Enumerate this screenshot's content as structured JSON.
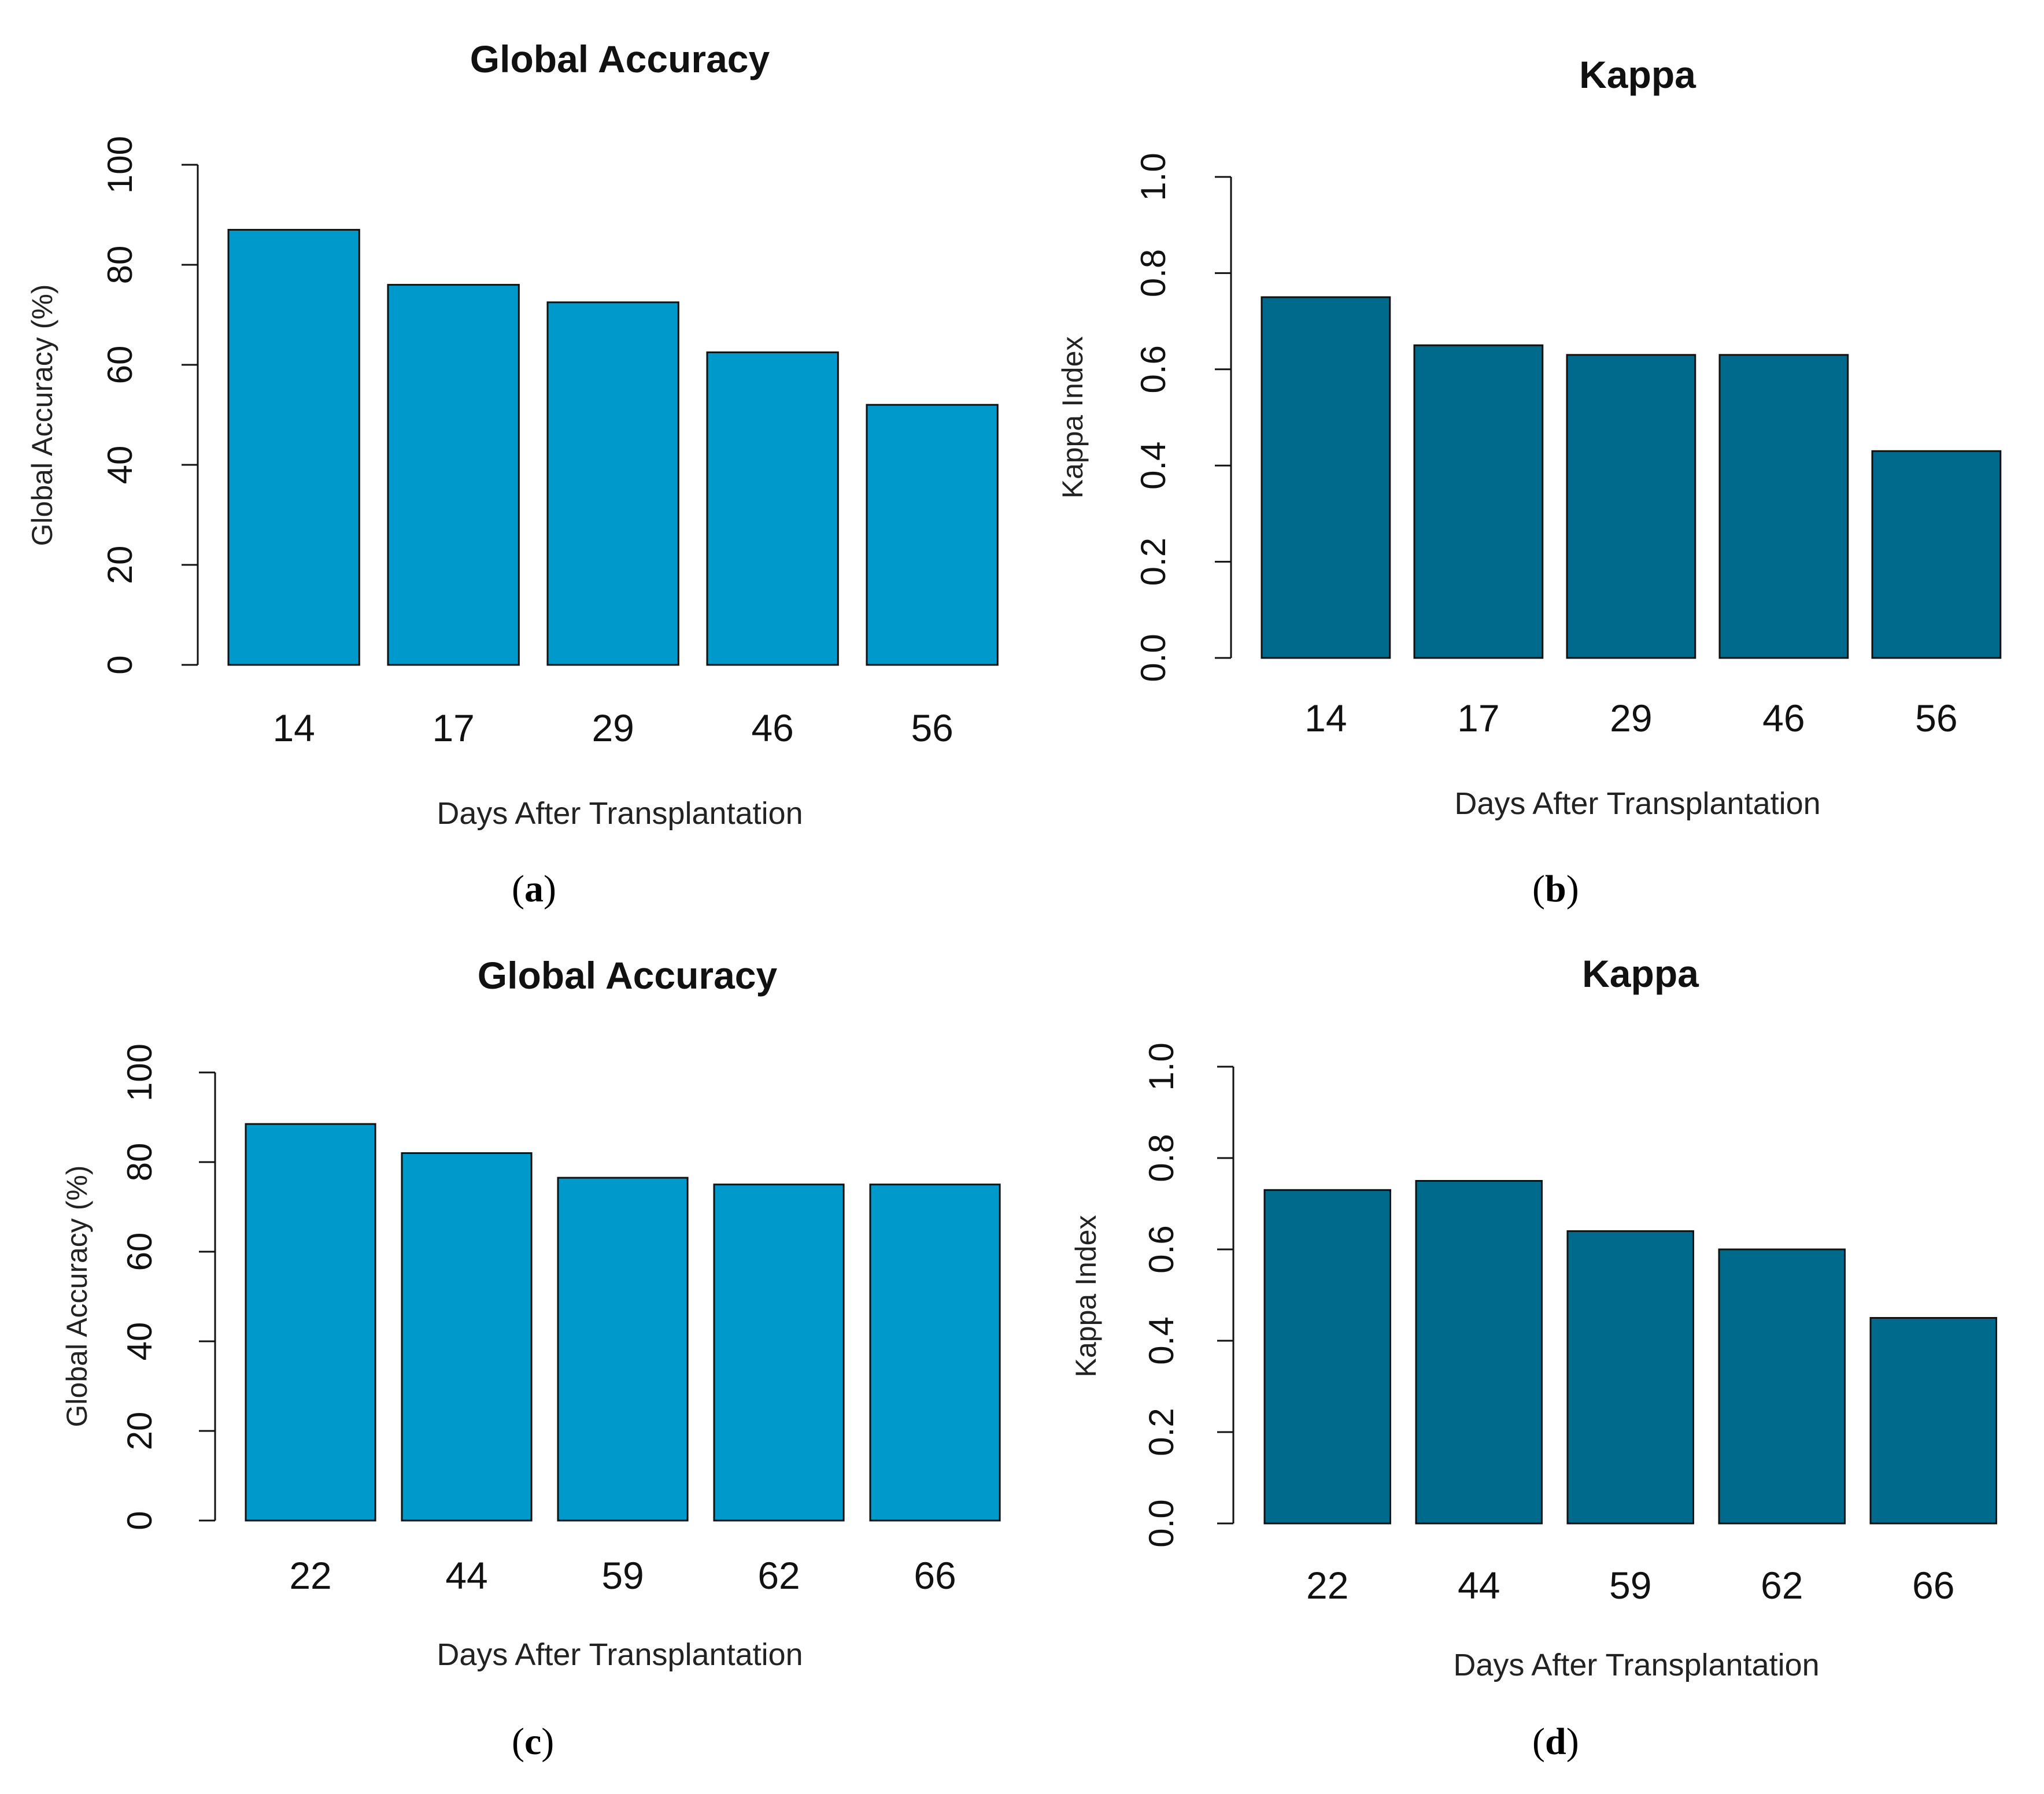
{
  "chart_data": [
    {
      "panel": "a",
      "type": "bar",
      "title": "Global Accuracy",
      "xlabel": "Days After Transplantation",
      "ylabel": "Global Accuracy (%)",
      "categories": [
        "14",
        "17",
        "29",
        "46",
        "56"
      ],
      "values": [
        87,
        76,
        72.5,
        62.5,
        52
      ],
      "ylim": [
        0,
        100
      ],
      "yticks": [
        "0",
        "20",
        "40",
        "60",
        "80",
        "100"
      ],
      "ytick_values": [
        0,
        20,
        40,
        60,
        80,
        100
      ],
      "color": "#0099cc",
      "grid": false
    },
    {
      "panel": "b",
      "type": "bar",
      "title": "Kappa",
      "xlabel": "Days After Transplantation",
      "ylabel": "Kappa Index",
      "categories": [
        "14",
        "17",
        "29",
        "46",
        "56"
      ],
      "values": [
        0.75,
        0.65,
        0.63,
        0.63,
        0.43
      ],
      "ylim": [
        0,
        1.0
      ],
      "yticks": [
        "0.0",
        "0.2",
        "0.4",
        "0.6",
        "0.8",
        "1.0"
      ],
      "ytick_values": [
        0,
        0.2,
        0.4,
        0.6,
        0.8,
        1.0
      ],
      "color": "#006a8c",
      "grid": false
    },
    {
      "panel": "c",
      "type": "bar",
      "title": "Global Accuracy",
      "xlabel": "Days After Transplantation",
      "ylabel": "Global Accuracy (%)",
      "categories": [
        "22",
        "44",
        "59",
        "62",
        "66"
      ],
      "values": [
        88.5,
        82,
        76.5,
        75,
        75
      ],
      "ylim": [
        0,
        100
      ],
      "yticks": [
        "0",
        "20",
        "40",
        "60",
        "80",
        "100"
      ],
      "ytick_values": [
        0,
        20,
        40,
        60,
        80,
        100
      ],
      "color": "#0099cc",
      "grid": false
    },
    {
      "panel": "d",
      "type": "bar",
      "title": "Kappa",
      "xlabel": "Days After Transplantation",
      "ylabel": "Kappa Index",
      "categories": [
        "22",
        "44",
        "59",
        "62",
        "66"
      ],
      "values": [
        0.73,
        0.75,
        0.64,
        0.6,
        0.45
      ],
      "ylim": [
        0,
        1.0
      ],
      "yticks": [
        "0.0",
        "0.2",
        "0.4",
        "0.6",
        "0.8",
        "1.0"
      ],
      "ytick_values": [
        0,
        0.2,
        0.4,
        0.6,
        0.8,
        1.0
      ],
      "color": "#006a8c",
      "grid": false
    }
  ],
  "panel_labels": {
    "a": {
      "open": "(",
      "letter": "a",
      "close": ")"
    },
    "b": {
      "open": "(",
      "letter": "b",
      "close": ")"
    },
    "c": {
      "open": "(",
      "letter": "c",
      "close": ")"
    },
    "d": {
      "open": "(",
      "letter": "d",
      "close": ")"
    }
  }
}
